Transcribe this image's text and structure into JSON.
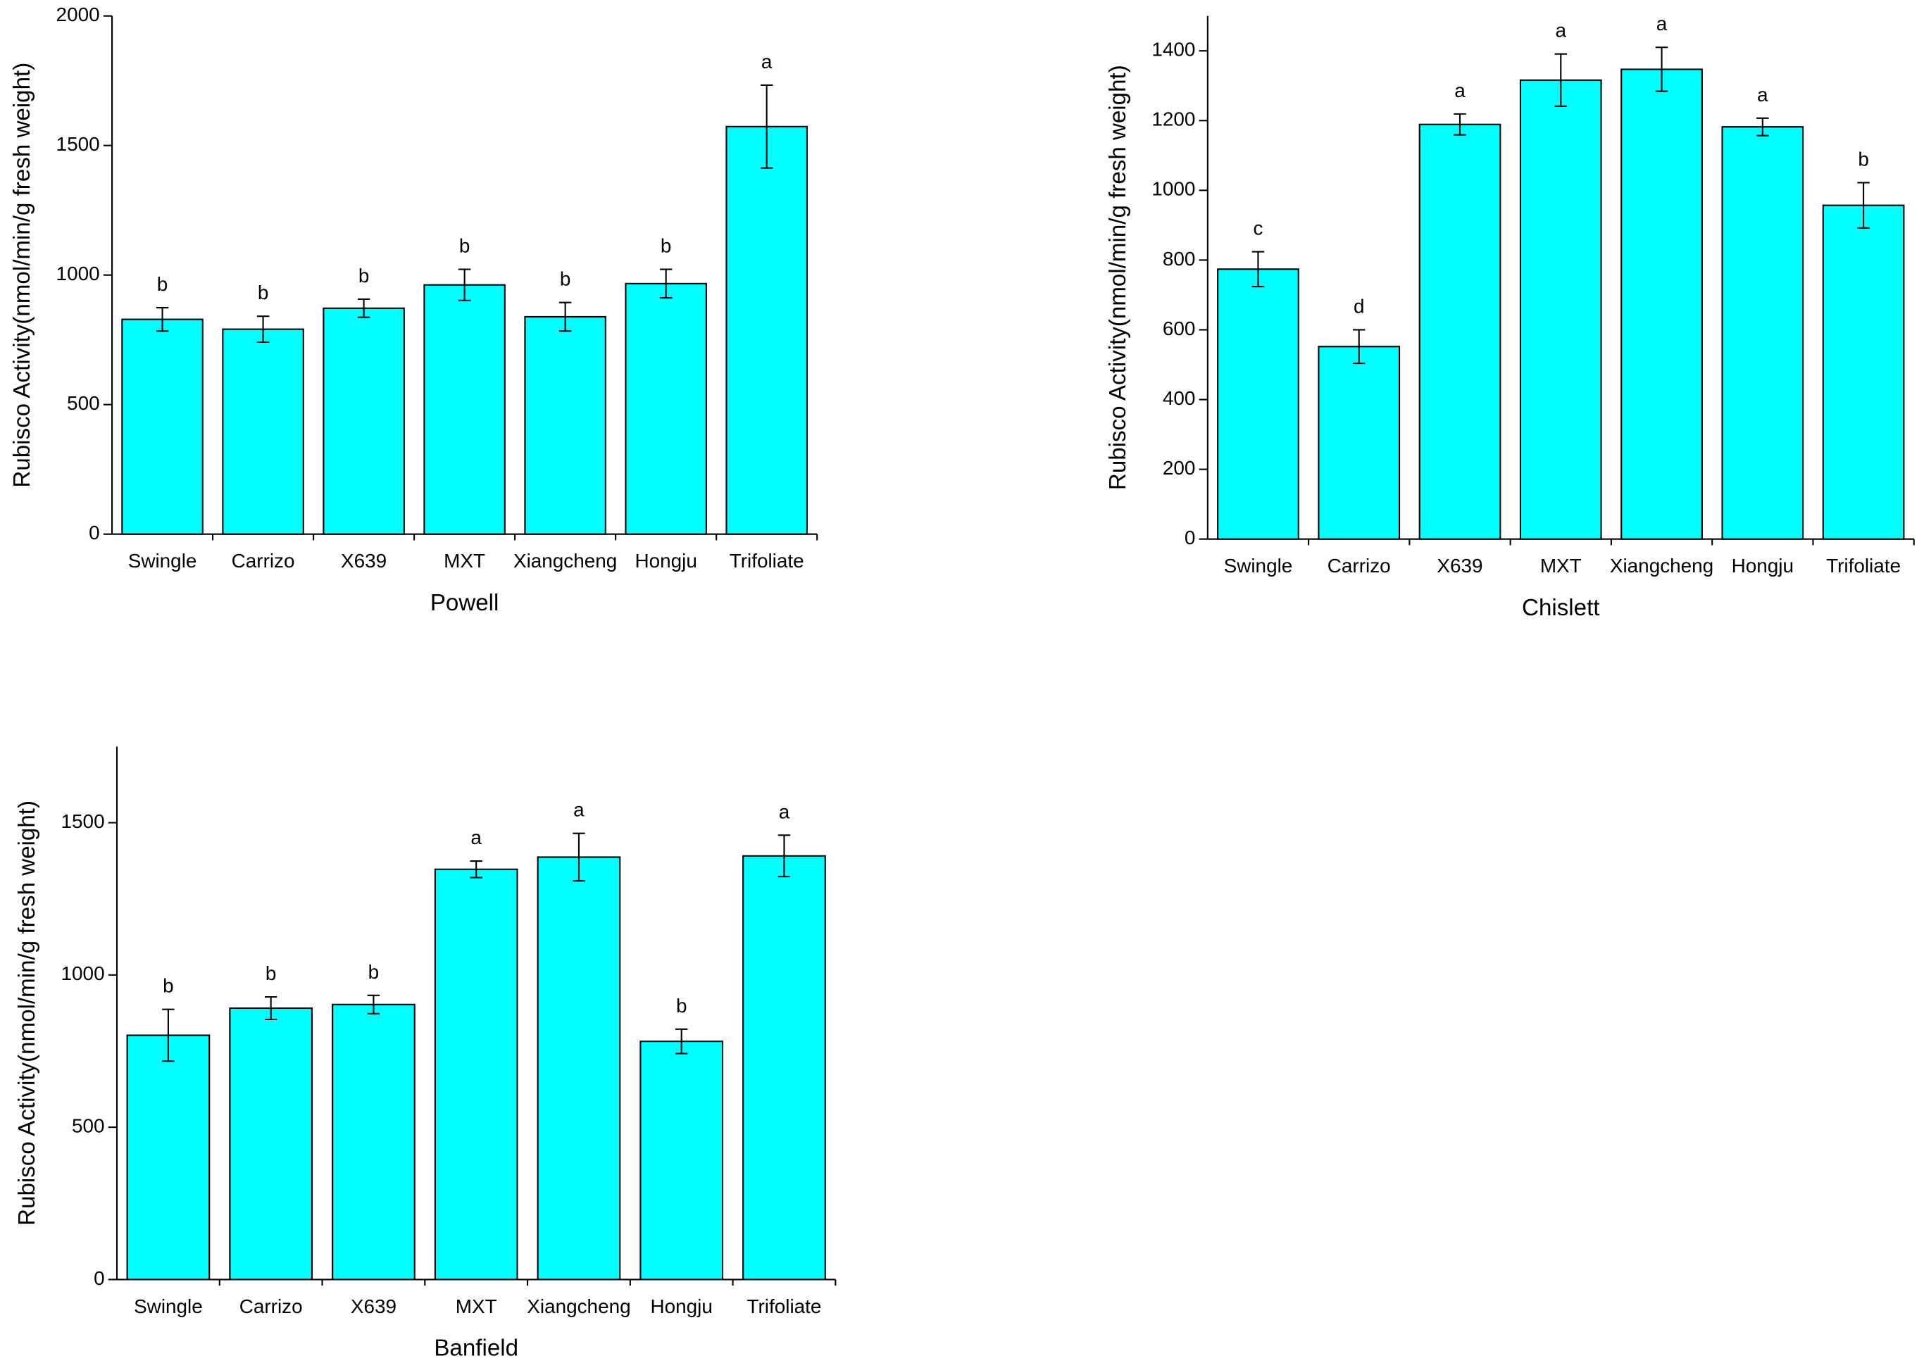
{
  "chart_data": [
    {
      "type": "bar",
      "x_label": "Powell",
      "y_label": "Rubisco Activity(nmol/min/g fresh weight)",
      "categories": [
        "Swingle",
        "Carrizo",
        "X639",
        "MXT",
        "Xiangcheng",
        "Hongju",
        "Trifoliate"
      ],
      "values": [
        829,
        791,
        872,
        962,
        839,
        967,
        1573
      ],
      "errors": [
        45,
        50,
        35,
        60,
        55,
        55,
        160
      ],
      "annotations": [
        "b",
        "b",
        "b",
        "b",
        "b",
        "b",
        "a"
      ],
      "color": "#00ffff",
      "ylim": [
        0,
        2000
      ],
      "yticks": [
        0,
        500,
        1000,
        1500,
        2000
      ]
    },
    {
      "type": "bar",
      "x_label": "Chislett",
      "y_label": "Rubisco Activity(nmol/min/g fresh weight)",
      "categories": [
        "Swingle",
        "Carrizo",
        "X639",
        "MXT",
        "Xiangcheng",
        "Hongju",
        "Trifoliate"
      ],
      "values": [
        774,
        552,
        1189,
        1316,
        1347,
        1182,
        957
      ],
      "errors": [
        50,
        48,
        30,
        75,
        63,
        25,
        65
      ],
      "annotations": [
        "c",
        "d",
        "a",
        "a",
        "a",
        "a",
        "b"
      ],
      "color": "#00ffff",
      "ylim": [
        0,
        1500
      ],
      "yticks": [
        0,
        200,
        400,
        600,
        800,
        1000,
        1200,
        1400
      ]
    },
    {
      "type": "bar",
      "x_label": "Banfield",
      "y_label": "Rubisco Activity(nmol/min/g fresh weight)",
      "categories": [
        "Swingle",
        "Carrizo",
        "X639",
        "MXT",
        "Xiangcheng",
        "Hongju",
        "Trifoliate"
      ],
      "values": [
        802,
        891,
        903,
        1347,
        1387,
        782,
        1391
      ],
      "errors": [
        85,
        37,
        30,
        27,
        78,
        40,
        68
      ],
      "annotations": [
        "b",
        "b",
        "b",
        "a",
        "a",
        "b",
        "a"
      ],
      "color": "#00ffff",
      "ylim": [
        0,
        1750
      ],
      "yticks": [
        0,
        500,
        1000,
        1500
      ]
    }
  ]
}
